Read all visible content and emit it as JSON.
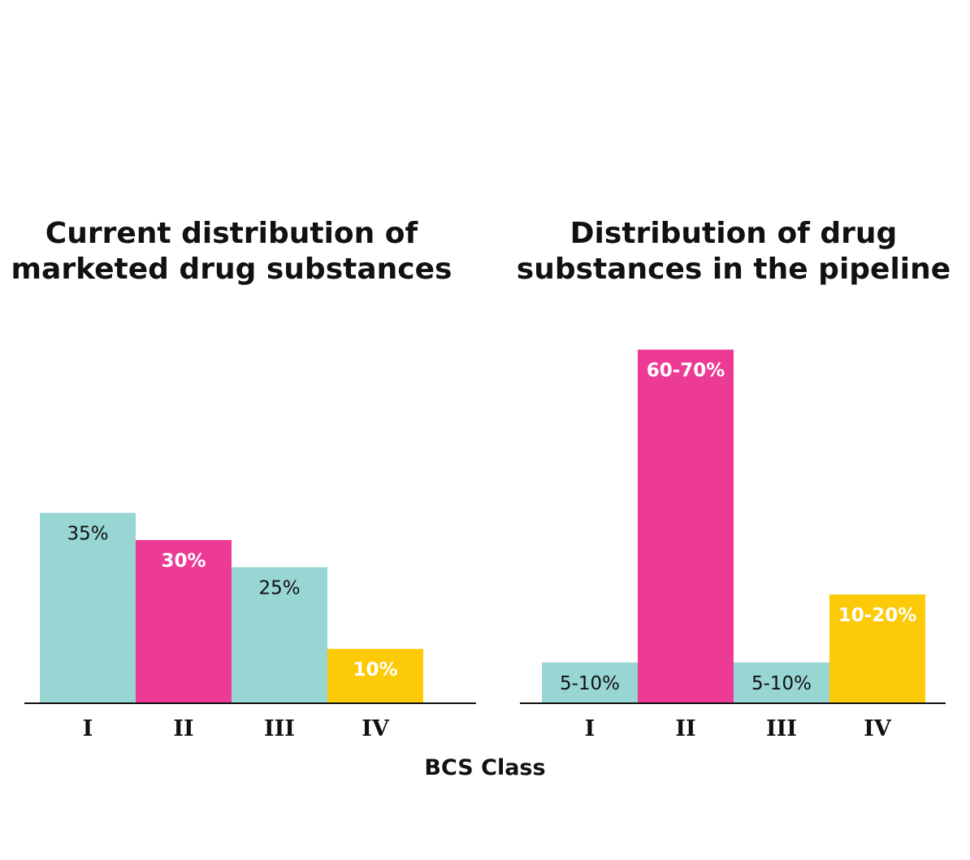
{
  "colors": {
    "teal": "#97D6D3",
    "pink": "#EC3A95",
    "yellow": "#FDCA08",
    "axis": "#111111",
    "dark_text": "#111111",
    "light_text": "#ffffff"
  },
  "xlabel": "BCS Class",
  "chart_data": [
    {
      "type": "bar",
      "title_lines": [
        "Current distribution of",
        "marketed drug substances"
      ],
      "categories": [
        "I",
        "II",
        "III",
        "IV"
      ],
      "values": [
        35,
        30,
        25,
        10
      ],
      "labels": [
        "35%",
        "30%",
        "25%",
        "10%"
      ],
      "bar_colors": [
        "teal",
        "pink",
        "teal",
        "yellow"
      ],
      "label_colors": [
        "dark_text",
        "light_text",
        "dark_text",
        "light_text"
      ],
      "label_bold": [
        false,
        true,
        false,
        true
      ],
      "xlabel": "BCS Class",
      "ylim": [
        0,
        70
      ]
    },
    {
      "type": "bar",
      "title_lines": [
        "Distribution of drug",
        "substances in the pipeline"
      ],
      "categories": [
        "I",
        "II",
        "III",
        "IV"
      ],
      "values": [
        7.5,
        65,
        7.5,
        20
      ],
      "labels": [
        "5-10%",
        "60-70%",
        "5-10%",
        "10-20%"
      ],
      "bar_colors": [
        "teal",
        "pink",
        "teal",
        "yellow"
      ],
      "label_colors": [
        "dark_text",
        "light_text",
        "dark_text",
        "light_text"
      ],
      "label_bold": [
        false,
        true,
        false,
        true
      ],
      "xlabel": "BCS Class",
      "ylim": [
        0,
        70
      ]
    }
  ]
}
